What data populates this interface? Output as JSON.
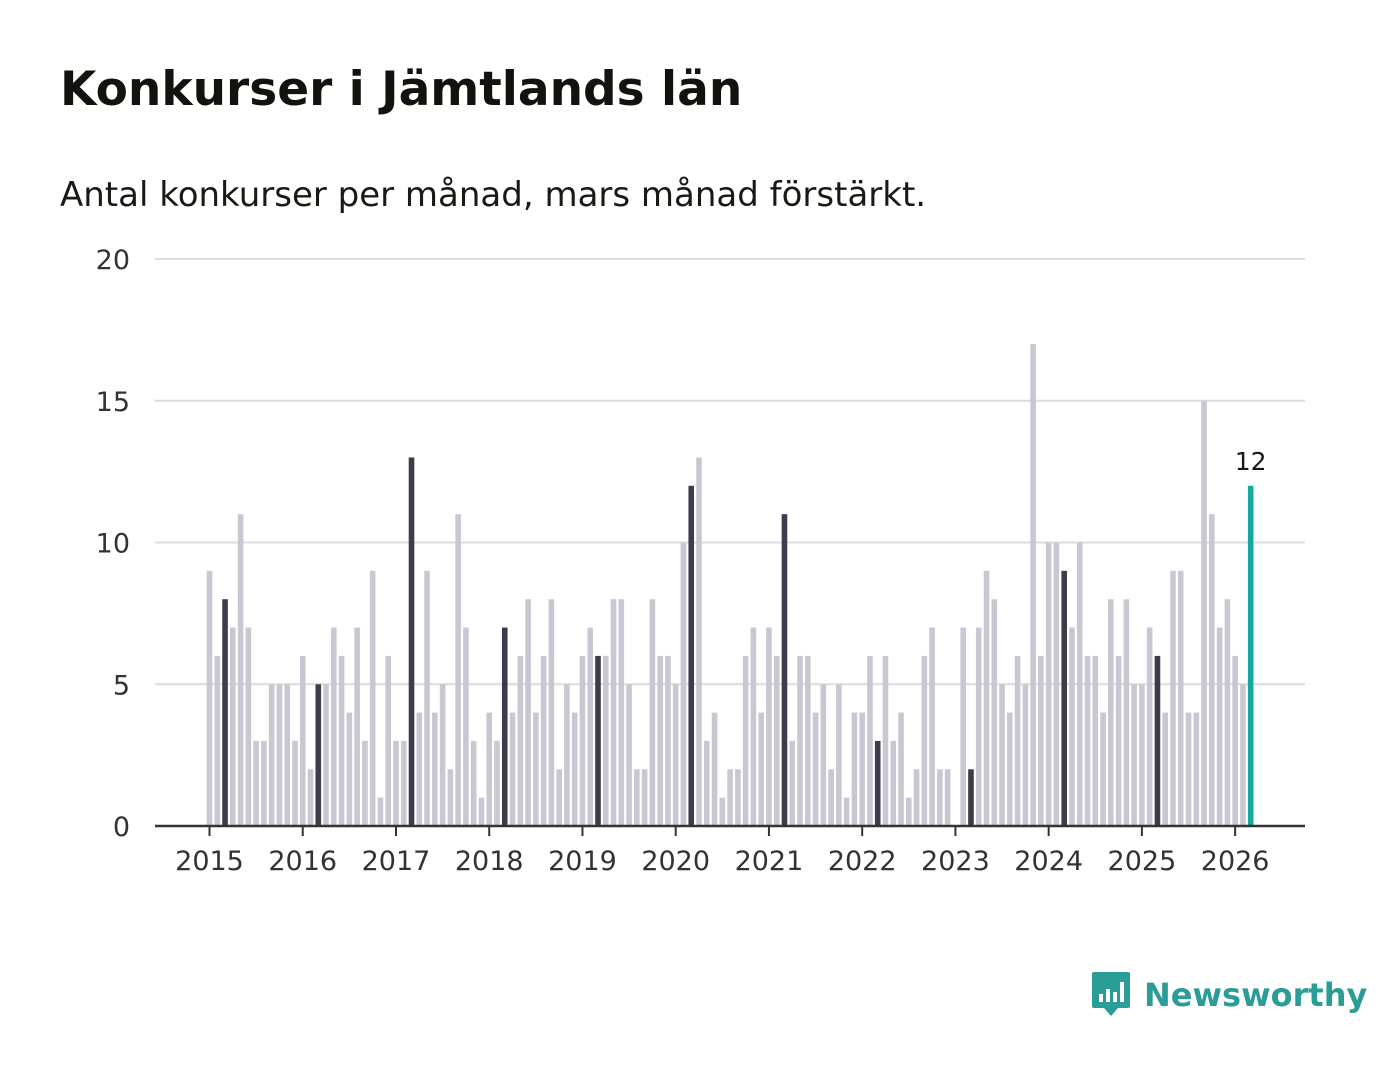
{
  "title": "Konkurser i Jämtlands län",
  "subtitle": "Antal konkurser per månad, mars månad förstärkt.",
  "brand": {
    "name": "Newsworthy",
    "icon": "newsworthy-logo-icon",
    "color": "#2a9d96"
  },
  "colors": {
    "bar": "#c8c8d2",
    "march": "#3c3c4c",
    "latest": "#14a99c",
    "grid": "#dcdcdc",
    "axis": "#333333"
  },
  "chart_data": {
    "type": "bar",
    "title": "Konkurser i Jämtlands län",
    "subtitle": "Antal konkurser per månad, mars månad förstärkt.",
    "xlabel": "",
    "ylabel": "",
    "ylim": [
      0,
      20
    ],
    "yticks": [
      0,
      5,
      10,
      15,
      20
    ],
    "grid": true,
    "start": "2015-01",
    "xtick_labels": [
      "2015",
      "2016",
      "2017",
      "2018",
      "2019",
      "2020",
      "2021",
      "2022",
      "2023",
      "2024",
      "2025",
      "2026"
    ],
    "highlight_month": 3,
    "latest_label": "12",
    "values": [
      9,
      6,
      8,
      7,
      11,
      7,
      3,
      3,
      5,
      5,
      5,
      3,
      6,
      2,
      5,
      5,
      7,
      6,
      4,
      7,
      3,
      9,
      1,
      6,
      3,
      3,
      13,
      4,
      9,
      4,
      5,
      2,
      11,
      7,
      3,
      1,
      4,
      3,
      7,
      4,
      6,
      8,
      4,
      6,
      8,
      2,
      5,
      4,
      6,
      7,
      6,
      6,
      8,
      8,
      5,
      2,
      2,
      8,
      6,
      6,
      5,
      10,
      12,
      13,
      3,
      4,
      1,
      2,
      2,
      6,
      7,
      4,
      7,
      6,
      11,
      3,
      6,
      6,
      4,
      5,
      2,
      5,
      1,
      4,
      4,
      6,
      3,
      6,
      3,
      4,
      1,
      2,
      6,
      7,
      2,
      2,
      0,
      7,
      2,
      7,
      9,
      8,
      5,
      4,
      6,
      5,
      17,
      6,
      10,
      10,
      9,
      7,
      10,
      6,
      6,
      4,
      8,
      6,
      8,
      5,
      5,
      7,
      6,
      4,
      9,
      9,
      4,
      4,
      15,
      11,
      7,
      8,
      6,
      5,
      12
    ]
  }
}
